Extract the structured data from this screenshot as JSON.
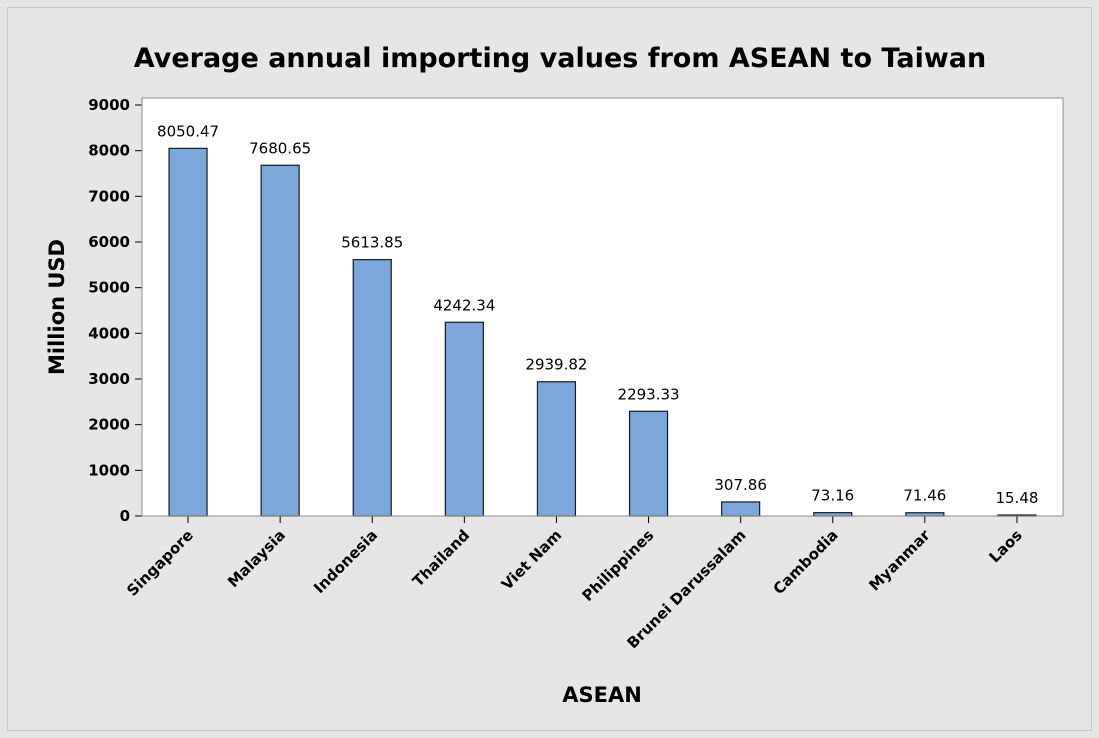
{
  "chart_data": {
    "type": "bar",
    "title": "Average annual importing values from ASEAN to Taiwan",
    "xlabel": "ASEAN",
    "ylabel": "Million USD",
    "categories": [
      "Singapore",
      "Malaysia",
      "Indonesia",
      "Thailand",
      "Viet Nam",
      "Philippines",
      "Brunei Darussalam",
      "Cambodia",
      "Myanmar",
      "Laos"
    ],
    "values": [
      8050.47,
      7680.65,
      5613.85,
      4242.34,
      2939.82,
      2293.33,
      307.86,
      73.16,
      71.46,
      15.48
    ],
    "data_labels": [
      "8050.47",
      "7680.65",
      "5613.85",
      "4242.34",
      "2939.82",
      "2293.33",
      "307.86",
      "73.16",
      "71.46",
      "15.48"
    ],
    "ylim": [
      0,
      9000
    ],
    "yticks": [
      0,
      1000,
      2000,
      3000,
      4000,
      5000,
      6000,
      7000,
      8000,
      9000
    ],
    "grid": false,
    "legend": "none",
    "colors": {
      "background": "#e6e6e6",
      "plot_background": "#ffffff",
      "bar_fill": "#7ba7da",
      "bar_stroke": "#1a1a1a",
      "frame": "#8c8c8c"
    }
  }
}
